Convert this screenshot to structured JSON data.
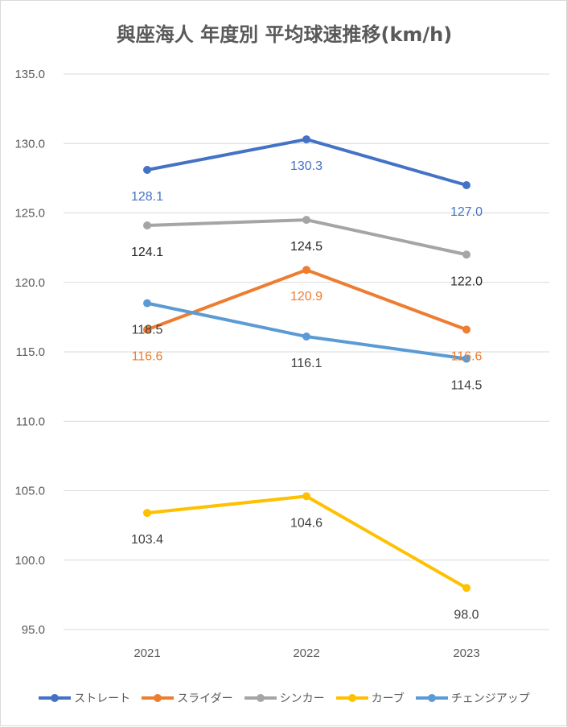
{
  "chart_data": {
    "type": "line",
    "title": "與座海人 年度別 平均球速推移(km/h)",
    "categories": [
      "2021",
      "2022",
      "2023"
    ],
    "ylim": [
      95.0,
      135.0
    ],
    "yticks": [
      "135.0",
      "130.0",
      "125.0",
      "120.0",
      "115.0",
      "110.0",
      "105.0",
      "100.0",
      "95.0"
    ],
    "grid": true,
    "legend_position": "bottom",
    "series": [
      {
        "name": "ストレート",
        "values": [
          128.1,
          130.3,
          127.0
        ],
        "labels": [
          "128.1",
          "130.3",
          "127.0"
        ],
        "color": "#4472c4",
        "label_color": "#4472c4",
        "label_pos": "below"
      },
      {
        "name": "スライダー",
        "values": [
          116.6,
          120.9,
          116.6
        ],
        "labels": [
          "116.6",
          "120.9",
          "116.6"
        ],
        "color": "#ed7d31",
        "label_color": "#ed7d31",
        "label_pos": "below"
      },
      {
        "name": "シンカー",
        "values": [
          124.1,
          124.5,
          122.0
        ],
        "labels": [
          "124.1",
          "124.5",
          "122.0"
        ],
        "color": "#a5a5a5",
        "label_color": "#262626",
        "label_pos": "below"
      },
      {
        "name": "カーブ",
        "values": [
          103.4,
          104.6,
          98.0
        ],
        "labels": [
          "103.4",
          "104.6",
          "98.0"
        ],
        "color": "#ffc000",
        "label_color": "#404040",
        "label_pos": "below"
      },
      {
        "name": "チェンジアップ",
        "values": [
          118.5,
          116.1,
          114.5
        ],
        "labels": [
          "118.5",
          "116.1",
          "114.5"
        ],
        "color": "#5b9bd5",
        "label_color": "#404040",
        "label_pos": "below"
      }
    ]
  }
}
